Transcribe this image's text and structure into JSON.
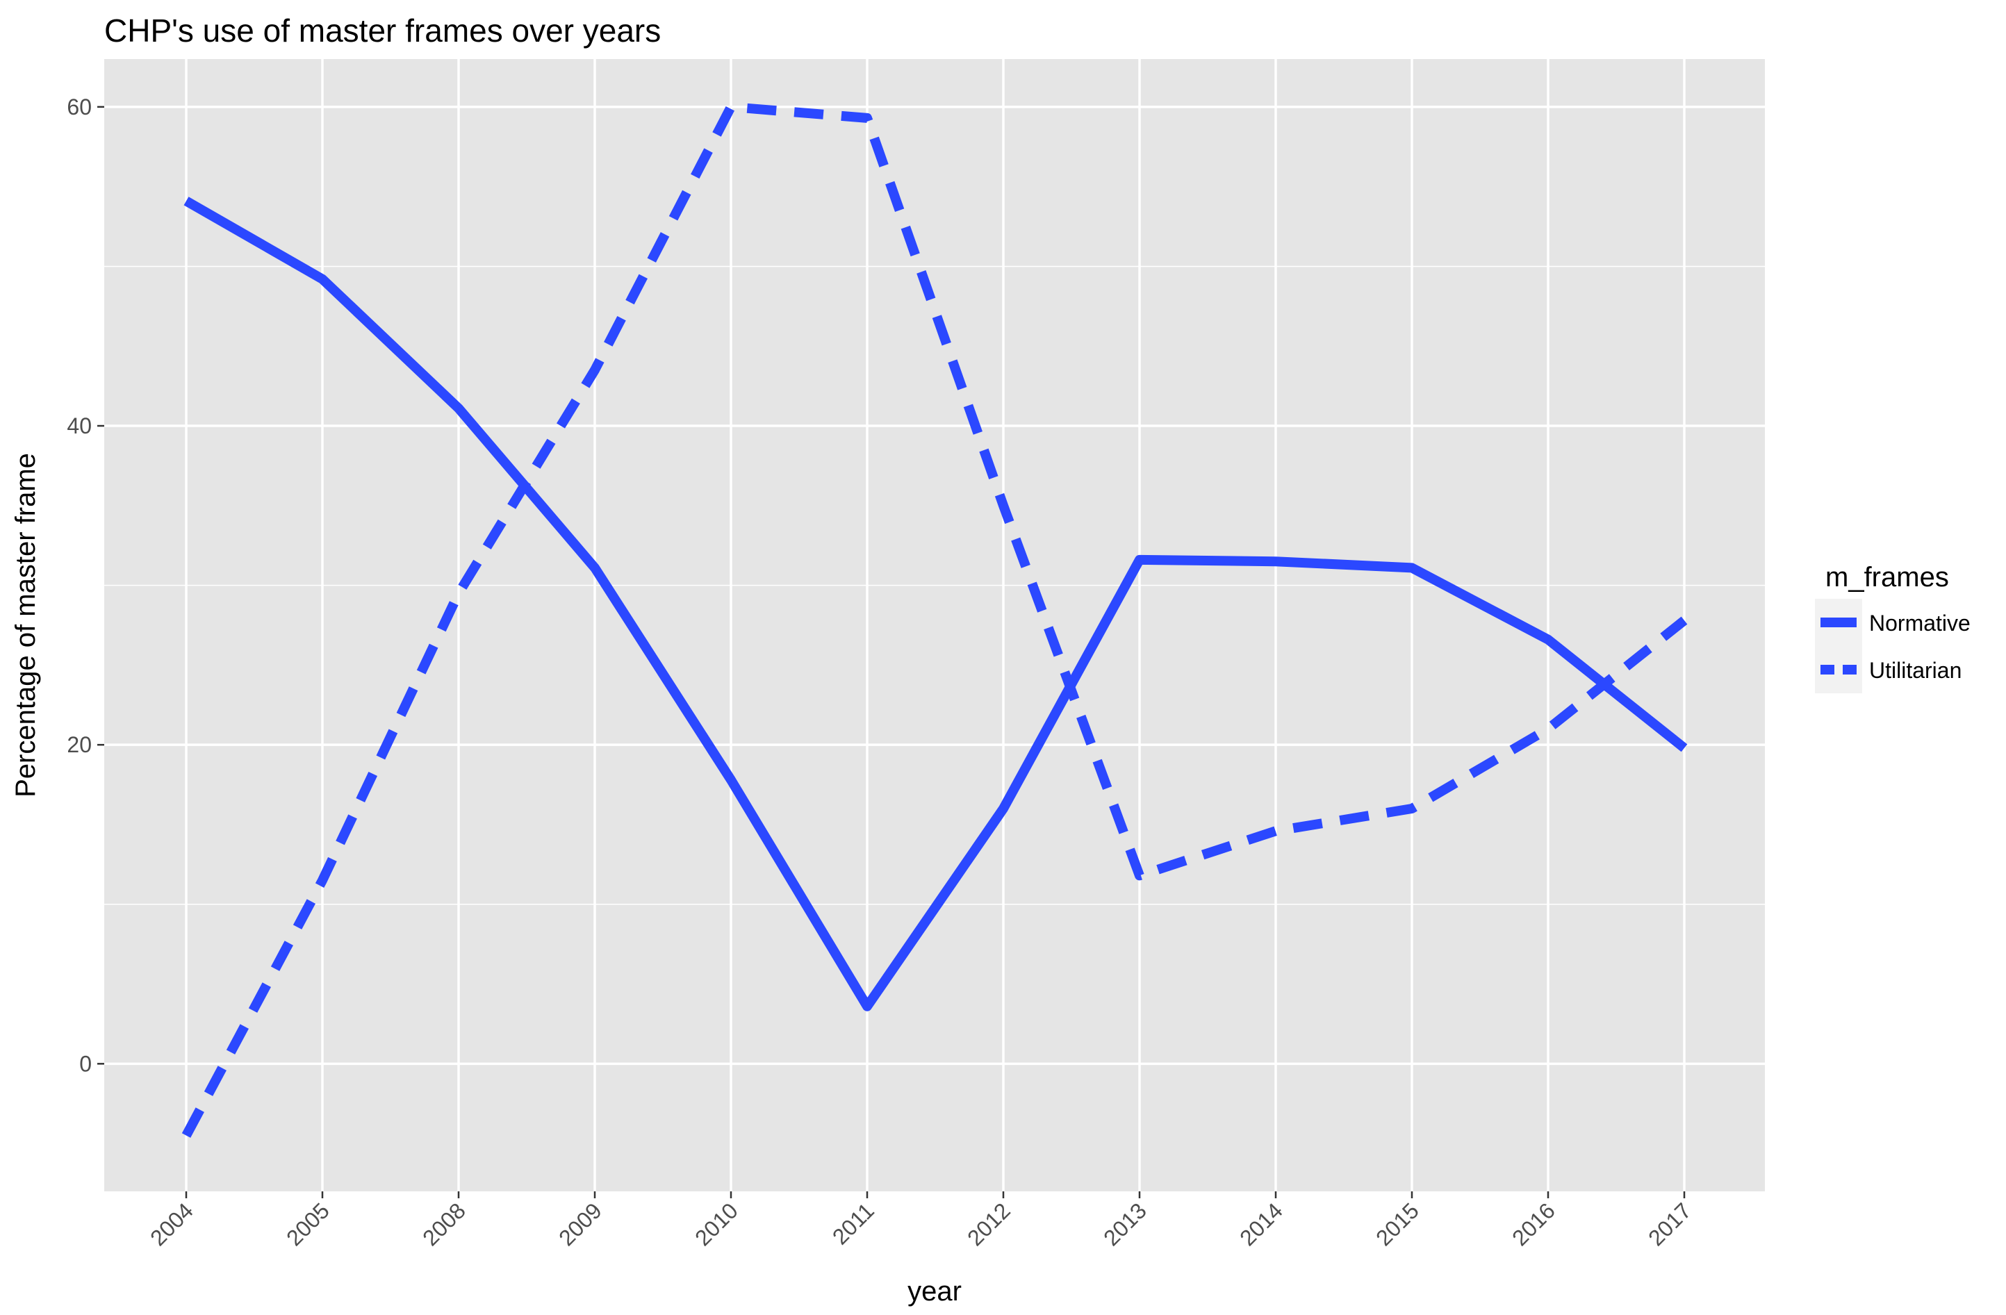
{
  "chart_data": {
    "type": "line",
    "title": "CHP's use of master frames over years",
    "xlabel": "year",
    "ylabel": "Percentage of master frame",
    "categories": [
      "2004",
      "2005",
      "2008",
      "2009",
      "2010",
      "2011",
      "2012",
      "2013",
      "2014",
      "2015",
      "2016",
      "2017"
    ],
    "ylim": [
      -8,
      63
    ],
    "yticks": [
      0,
      20,
      40,
      60
    ],
    "grid": true,
    "legend": {
      "title": "m_frames",
      "placement": "right"
    },
    "series": [
      {
        "name": "Normative",
        "style": "solid",
        "color": "#2b48ff",
        "values": [
          54.1,
          49.2,
          41.1,
          31.1,
          17.8,
          3.6,
          16.0,
          31.6,
          31.5,
          31.1,
          26.6,
          19.8
        ]
      },
      {
        "name": "Utilitarian",
        "style": "dashed",
        "color": "#2b48ff",
        "values": [
          -4.5,
          11.5,
          29.5,
          43.5,
          60.0,
          59.3,
          35.0,
          11.8,
          14.6,
          16.0,
          21.0,
          27.8
        ]
      }
    ]
  },
  "colors": {
    "panel_background": "#e5e5e5",
    "grid_line": "#ffffff",
    "line": "#2b48ff",
    "legend_key_background": "#f2f2f2"
  }
}
